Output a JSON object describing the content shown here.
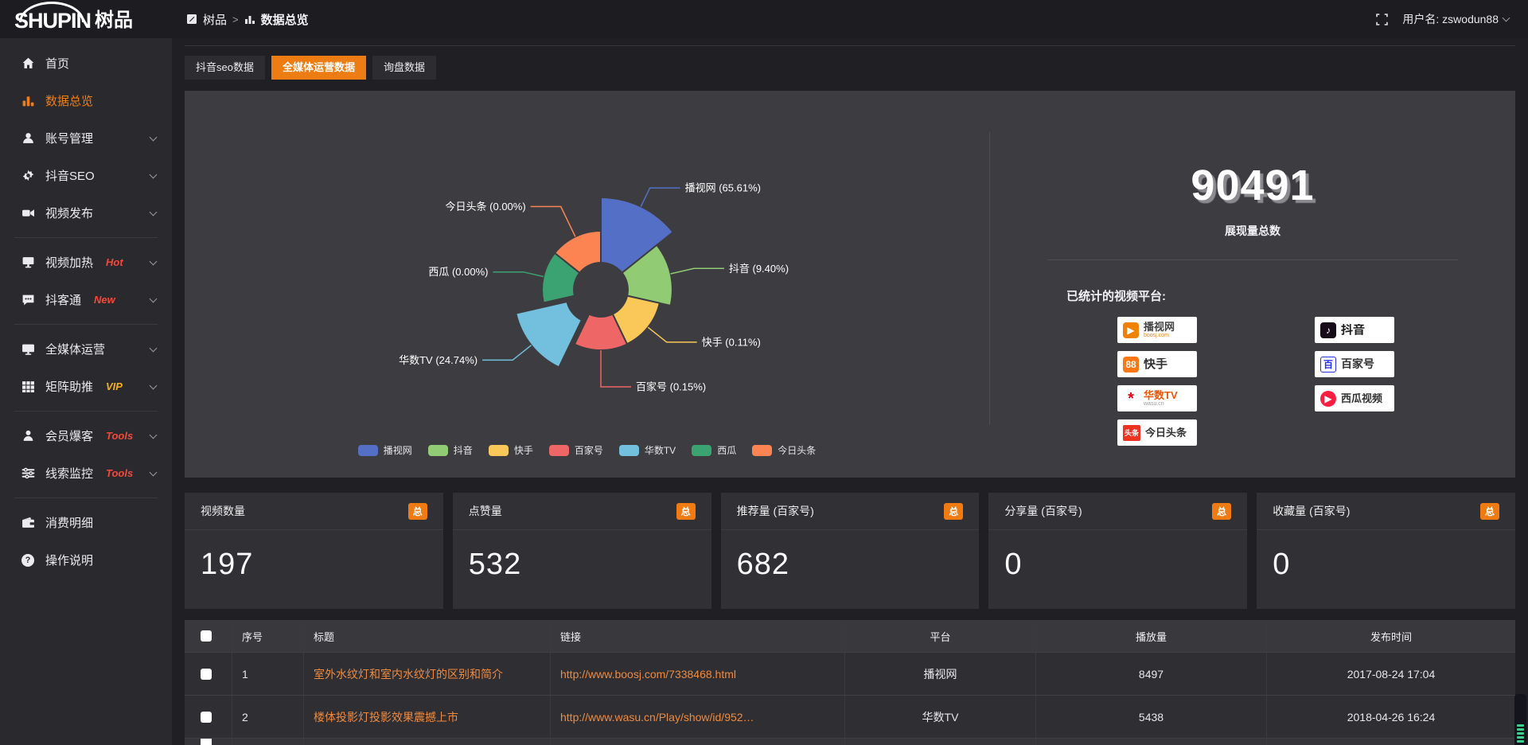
{
  "topbar": {
    "logo_en": "SHUPIN",
    "logo_cn": "树品",
    "breadcrumb_root": "树品",
    "breadcrumb_sep": ">",
    "breadcrumb_current": "数据总览",
    "username": "用户名: zswodun88"
  },
  "sidebar": {
    "items": [
      {
        "label": "首页"
      },
      {
        "label": "数据总览",
        "active": true
      },
      {
        "label": "账号管理",
        "chevron": true
      },
      {
        "label": "抖音SEO",
        "chevron": true
      },
      {
        "label": "视频发布",
        "chevron": true
      },
      {
        "label": "视频加热",
        "badge": "Hot",
        "badge_color": "#f5483b",
        "chevron": true
      },
      {
        "label": "抖客通",
        "badge": "New",
        "badge_color": "#f5483b",
        "chevron": true
      },
      {
        "label": "全媒体运营",
        "chevron": true
      },
      {
        "label": "矩阵助推",
        "badge": "VIP",
        "badge_color": "#f2b01e",
        "chevron": true
      },
      {
        "label": "会员爆客",
        "badge": "Tools",
        "badge_color": "#f5483b",
        "chevron": true
      },
      {
        "label": "线索监控",
        "badge": "Tools",
        "badge_color": "#f5483b",
        "chevron": true
      },
      {
        "label": "消费明细"
      },
      {
        "label": "操作说明"
      }
    ]
  },
  "tabs": [
    {
      "label": "抖音seo数据"
    },
    {
      "label": "全媒体运营数据",
      "active": true
    },
    {
      "label": "询盘数据"
    }
  ],
  "chart_data": {
    "type": "pie",
    "subtype": "rose",
    "title": "",
    "categories": [
      "播视网",
      "抖音",
      "快手",
      "百家号",
      "华数TV",
      "西瓜",
      "今日头条"
    ],
    "values": [
      65.61,
      9.4,
      0.11,
      0.15,
      24.74,
      0.0,
      0.0
    ],
    "unit": "%",
    "labels": [
      "播视网 (65.61%)",
      "抖音 (9.40%)",
      "快手 (0.11%)",
      "百家号 (0.15%)",
      "华数TV (24.74%)",
      "西瓜 (0.00%)",
      "今日头条 (0.00%)"
    ],
    "colors": [
      "#5470c6",
      "#91cc75",
      "#fac858",
      "#ee6666",
      "#73c0de",
      "#3ba272",
      "#fc8452"
    ],
    "legend_position": "bottom",
    "selected_index": 4
  },
  "summary": {
    "total_value": "90491",
    "total_label": "展现量总数",
    "platforms_title": "已统计的视频平台:",
    "platforms": [
      {
        "name": "播视网",
        "sub": "boosj.com",
        "sub_color": "#f08200",
        "icon_bg": "#f08200",
        "icon_fg": "#ffffff",
        "icon_glyph": "▶",
        "name_color": "#444444"
      },
      {
        "name": "抖音",
        "icon_bg": "#170b1a",
        "icon_fg": "#ffffff",
        "icon_glyph": "♪",
        "name_color": "#1a1a1a"
      },
      {
        "name": "快手",
        "icon_bg": "#ff7711",
        "icon_fg": "#ffffff",
        "icon_glyph": "88",
        "name_color": "#333333"
      },
      {
        "name": "百家号",
        "icon_bg": "#ffffff",
        "icon_fg": "#2932e1",
        "icon_glyph": "百",
        "name_color": "#333333"
      },
      {
        "name": "华数TV",
        "sub": "wasu.cn",
        "sub_color": "#9a9a9a",
        "icon_bg": "#ffffff",
        "icon_fg": "#e60012",
        "icon_glyph": "*",
        "name_color": "#e8590c"
      },
      {
        "name": "西瓜视频",
        "icon_bg": "#fa1f41",
        "icon_fg": "#ffffff",
        "icon_glyph": "▶",
        "name_color": "#333333"
      },
      {
        "name": "今日头条",
        "icon_bg": "#ed3321",
        "icon_fg": "#ffffff",
        "icon_glyph": "头条",
        "name_color": "#333333"
      }
    ]
  },
  "stat_cards": [
    {
      "title": "视频数量",
      "badge": "总",
      "value": "197"
    },
    {
      "title": "点赞量",
      "badge": "总",
      "value": "532"
    },
    {
      "title": "推荐量 (百家号)",
      "badge": "总",
      "value": "682"
    },
    {
      "title": "分享量 (百家号)",
      "badge": "总",
      "value": "0"
    },
    {
      "title": "收藏量 (百家号)",
      "badge": "总",
      "value": "0"
    }
  ],
  "table": {
    "headers": [
      "序号",
      "标题",
      "链接",
      "平台",
      "播放量",
      "发布时间"
    ],
    "rows": [
      {
        "index": "1",
        "title": "室外水纹灯和室内水纹灯的区别和简介",
        "link": "http://www.boosj.com/7338468.html",
        "platform": "播视网",
        "plays": "8497",
        "time": "2017-08-24 17:04"
      },
      {
        "index": "2",
        "title": "楼体投影灯投影效果震撼上市",
        "link": "http://www.wasu.cn/Play/show/id/952…",
        "platform": "华数TV",
        "plays": "5438",
        "time": "2018-04-26 16:24"
      }
    ]
  }
}
